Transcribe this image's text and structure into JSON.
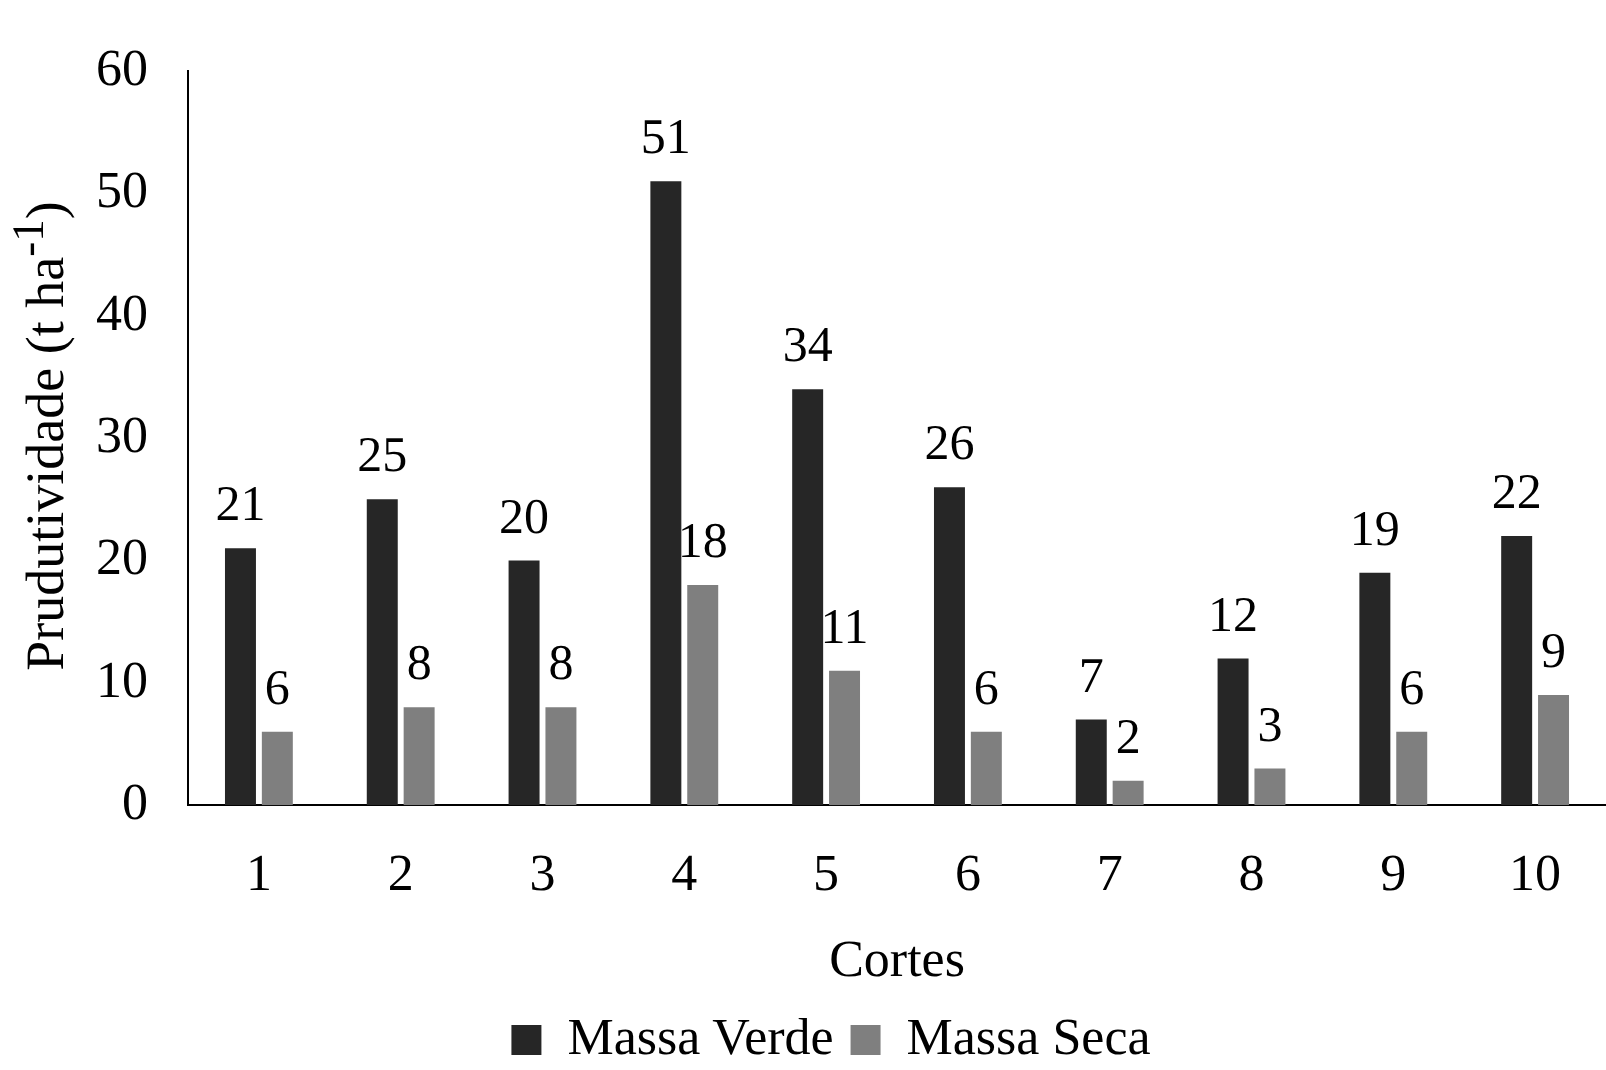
{
  "chart_data": {
    "type": "bar",
    "xlabel": "Cortes",
    "ylabel": "Prudutividade (t ha$^{-1}$)",
    "categories": [
      "1",
      "2",
      "3",
      "4",
      "5",
      "6",
      "7",
      "8",
      "9",
      "10"
    ],
    "series": [
      {
        "name": "Massa Verde",
        "color": "#262626",
        "values": [
          21,
          25,
          20,
          51,
          34,
          26,
          7,
          12,
          19,
          22
        ]
      },
      {
        "name": "Massa Seca",
        "color": "#7f7f7f",
        "values": [
          6,
          8,
          8,
          18,
          11,
          6,
          2,
          3,
          6,
          9
        ]
      }
    ],
    "ylim": [
      0,
      60
    ],
    "yticks": [
      0,
      10,
      20,
      30,
      40,
      50,
      60
    ],
    "grid": false,
    "legend": "bottom",
    "data_labels": true
  }
}
